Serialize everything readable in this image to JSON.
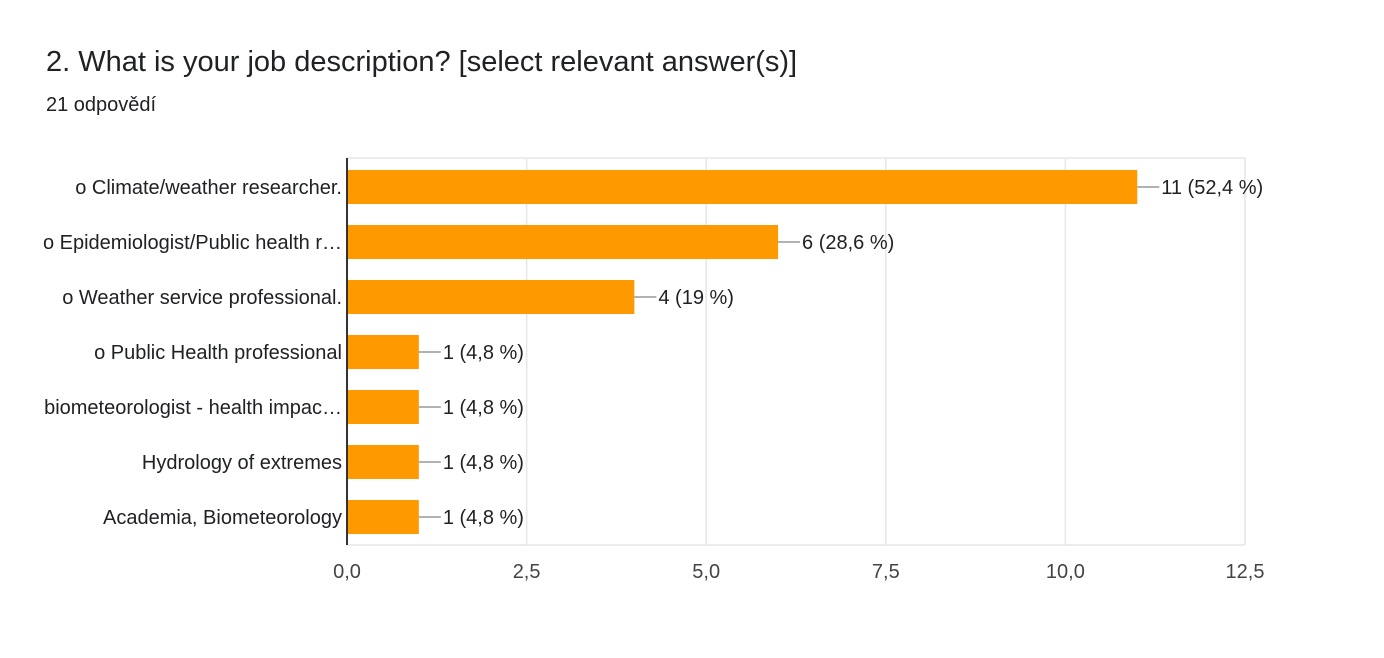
{
  "question": {
    "title": "2. What is your job description? [select relevant answer(s)]",
    "responses": "21 odpovědí"
  },
  "chart_data": {
    "type": "bar",
    "orientation": "horizontal",
    "categories": [
      "o Climate/weather researcher.",
      "o Epidemiologist/Public health r…",
      "o Weather service professional.",
      "o Public Health professional",
      "biometeorologist - health impac…",
      "Hydrology of extremes",
      "Academia, Biometeorology"
    ],
    "values": [
      11,
      6,
      4,
      1,
      1,
      1,
      1
    ],
    "value_labels": [
      "11 (52,4 %)",
      "6 (28,6 %)",
      "4 (19 %)",
      "1 (4,8 %)",
      "1 (4,8 %)",
      "1 (4,8 %)",
      "1 (4,8 %)"
    ],
    "xlim": [
      0,
      12.5
    ],
    "xticks": [
      0,
      2.5,
      5,
      7.5,
      10,
      12.5
    ],
    "xtick_labels": [
      "0,0",
      "2,5",
      "5,0",
      "7,5",
      "10,0",
      "12,5"
    ],
    "grid": true,
    "bar_color": "#ff9900",
    "grid_color": "#e6e6e6",
    "axis_color": "#333333"
  }
}
